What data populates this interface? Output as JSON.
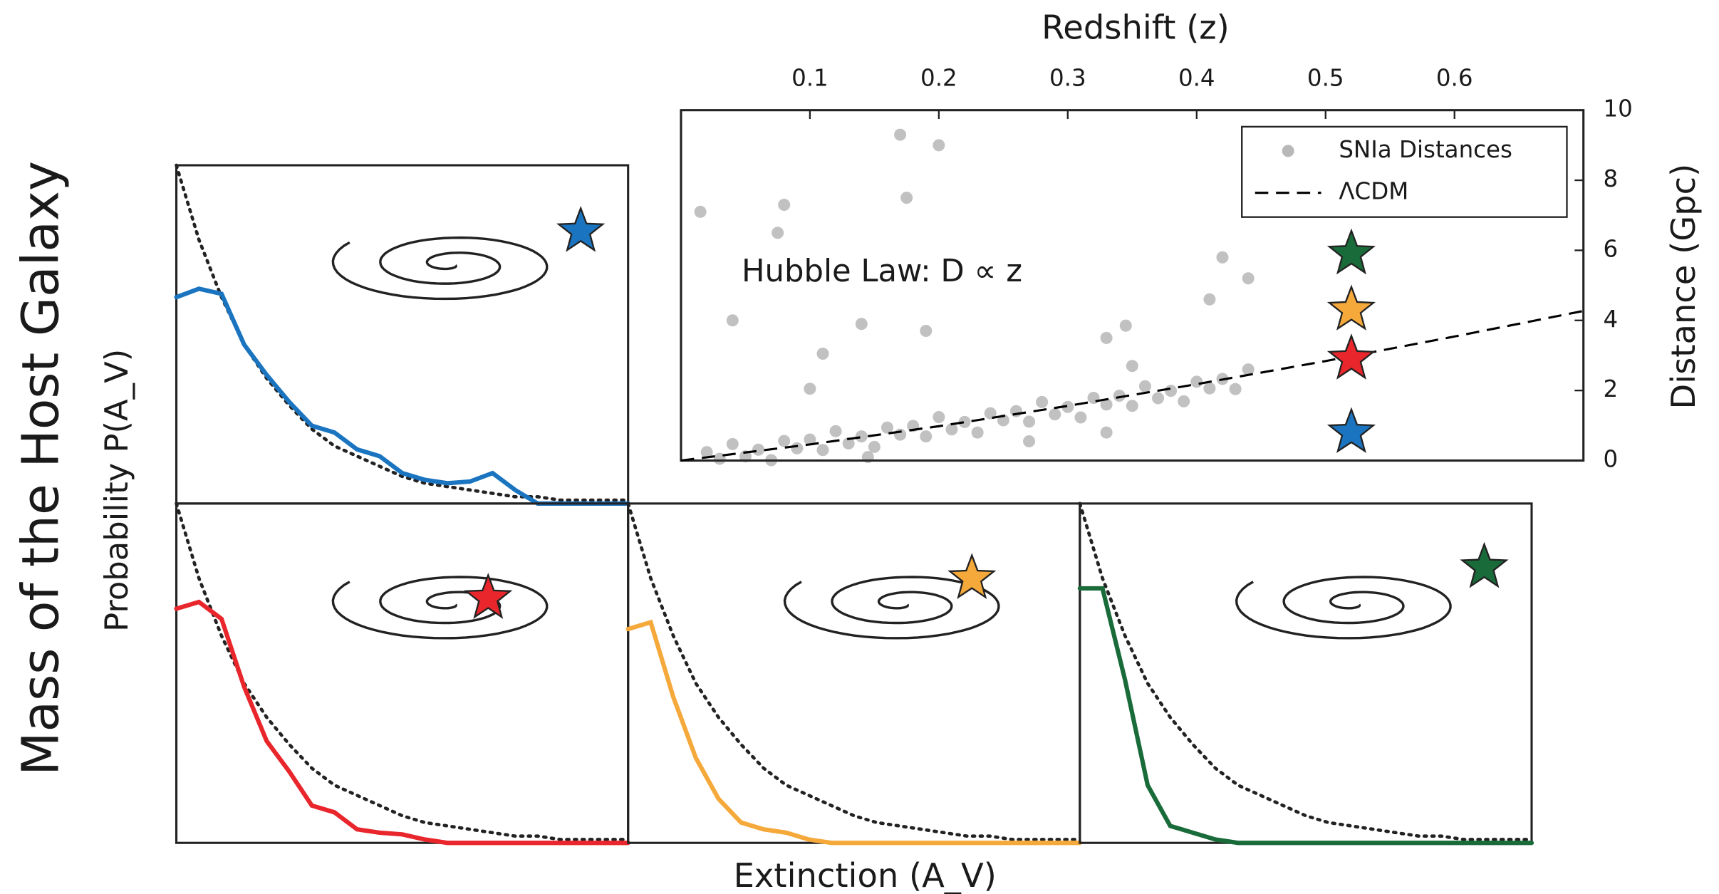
{
  "labels": {
    "figure_ylabel": "Mass of the Host Galaxy",
    "ylabel": "Probability P(A_V)",
    "xlabel": "Extinction (A_V)"
  },
  "chart_data": [
    {
      "type": "scatter",
      "xlabel": "Redshift (z)",
      "ylabel": "Distance (Gpc)",
      "annotation": "Hubble Law: D ∝ z",
      "xlim": [
        0,
        0.7
      ],
      "xticks": [
        0.1,
        0.2,
        0.3,
        0.4,
        0.5,
        0.6
      ],
      "ylim": [
        0,
        10
      ],
      "yticks": [
        0,
        2,
        4,
        6,
        8,
        10
      ],
      "legend": "upper right",
      "series": [
        {
          "name": "SNIa Distances",
          "type": "scatter",
          "color": "#333333",
          "x": [
            0.02,
            0.03,
            0.04,
            0.05,
            0.06,
            0.07,
            0.08,
            0.09,
            0.1,
            0.11,
            0.12,
            0.13,
            0.14,
            0.15,
            0.16,
            0.17,
            0.18,
            0.19,
            0.2,
            0.21,
            0.22,
            0.23,
            0.24,
            0.25,
            0.26,
            0.27,
            0.28,
            0.29,
            0.3,
            0.31,
            0.32,
            0.33,
            0.34,
            0.35,
            0.36,
            0.37,
            0.38,
            0.39,
            0.4,
            0.41,
            0.42,
            0.43,
            0.44,
            0.015,
            0.08,
            0.075,
            0.04,
            0.11,
            0.14,
            0.19,
            0.2,
            0.17,
            0.175,
            0.42,
            0.44,
            0.41,
            0.1,
            0.145,
            0.27,
            0.33,
            0.33,
            0.345,
            0.35
          ],
          "values": [
            0.24,
            0.05,
            0.47,
            0.12,
            0.31,
            0.01,
            0.56,
            0.35,
            0.6,
            0.3,
            0.84,
            0.49,
            0.69,
            0.39,
            0.94,
            0.74,
            0.99,
            0.69,
            1.24,
            0.89,
            1.1,
            0.8,
            1.35,
            1.15,
            1.41,
            1.11,
            1.67,
            1.32,
            1.53,
            1.23,
            1.79,
            1.6,
            1.85,
            1.56,
            2.12,
            1.78,
            1.99,
            1.69,
            2.25,
            2.06,
            2.33,
            2.04,
            2.6,
            7.1,
            7.3,
            6.5,
            4.0,
            3.05,
            3.9,
            3.7,
            9.0,
            9.3,
            7.5,
            5.8,
            5.2,
            4.6,
            2.05,
            0.1,
            0.55,
            0.8,
            3.5,
            3.85,
            2.7
          ]
        },
        {
          "name": "ΛCDM",
          "type": "line",
          "style": "dashed",
          "color": "#000000",
          "x": [
            0,
            0.1,
            0.2,
            0.3,
            0.4,
            0.5,
            0.6,
            0.7
          ],
          "values": [
            0,
            0.46,
            0.98,
            1.56,
            2.18,
            2.84,
            3.54,
            4.27
          ]
        }
      ],
      "stars": {
        "x": [
          0.52,
          0.52,
          0.52,
          0.52
        ],
        "values": [
          0.8,
          2.9,
          4.3,
          5.9
        ],
        "colors": [
          "#1a74bf",
          "#e8262b",
          "#f5a93b",
          "#1a6b3a"
        ]
      }
    },
    {
      "type": "line",
      "xlim": [
        0,
        1
      ],
      "ylim": [
        0,
        1
      ],
      "x": [
        0,
        0.05,
        0.1,
        0.15,
        0.2,
        0.25,
        0.3,
        0.35,
        0.4,
        0.45,
        0.5,
        0.55,
        0.6,
        0.65,
        0.7,
        0.75,
        0.8,
        0.85,
        0.9,
        0.95,
        1
      ],
      "series": [
        {
          "color": "#1a74bf",
          "values": [
            0.61,
            0.635,
            0.62,
            0.47,
            0.38,
            0.3,
            0.23,
            0.21,
            0.16,
            0.14,
            0.09,
            0.07,
            0.06,
            0.065,
            0.09,
            0.04,
            0,
            0,
            0,
            0,
            0
          ]
        },
        {
          "color": "#222222",
          "style": "dotted",
          "values": [
            1,
            0.78,
            0.61,
            0.47,
            0.37,
            0.29,
            0.22,
            0.17,
            0.14,
            0.11,
            0.08,
            0.06,
            0.05,
            0.04,
            0.03,
            0.02,
            0.02,
            0.01,
            0.01,
            0.01,
            0.01
          ]
        }
      ]
    },
    {
      "type": "line",
      "xlim": [
        0,
        1
      ],
      "ylim": [
        0,
        1
      ],
      "x": [
        0,
        0.05,
        0.1,
        0.15,
        0.2,
        0.25,
        0.3,
        0.35,
        0.4,
        0.45,
        0.5,
        0.55,
        0.6,
        0.65,
        0.7,
        0.75,
        0.8,
        0.85,
        0.9,
        0.95,
        1
      ],
      "series": [
        {
          "color": "#e8262b",
          "values": [
            0.69,
            0.71,
            0.66,
            0.46,
            0.3,
            0.21,
            0.11,
            0.09,
            0.04,
            0.03,
            0.025,
            0.01,
            0,
            0,
            0,
            0,
            0,
            0,
            0,
            0,
            0
          ]
        },
        {
          "color": "#222222",
          "style": "dotted",
          "values": [
            1,
            0.78,
            0.61,
            0.47,
            0.37,
            0.29,
            0.22,
            0.17,
            0.14,
            0.11,
            0.08,
            0.06,
            0.05,
            0.04,
            0.03,
            0.02,
            0.02,
            0.01,
            0.01,
            0.01,
            0.01
          ]
        }
      ]
    },
    {
      "type": "line",
      "xlim": [
        0,
        1
      ],
      "ylim": [
        0,
        1
      ],
      "x": [
        0,
        0.05,
        0.1,
        0.15,
        0.2,
        0.25,
        0.3,
        0.35,
        0.4,
        0.45,
        0.5,
        0.55,
        0.6,
        0.65,
        0.7,
        0.75,
        0.8,
        0.85,
        0.9,
        0.95,
        1
      ],
      "series": [
        {
          "color": "#f5a93b",
          "values": [
            0.63,
            0.65,
            0.43,
            0.25,
            0.13,
            0.06,
            0.04,
            0.03,
            0.01,
            0,
            0,
            0,
            0,
            0,
            0,
            0,
            0,
            0,
            0,
            0,
            0
          ]
        },
        {
          "color": "#222222",
          "style": "dotted",
          "values": [
            1,
            0.78,
            0.61,
            0.47,
            0.37,
            0.29,
            0.22,
            0.17,
            0.14,
            0.11,
            0.08,
            0.06,
            0.05,
            0.04,
            0.03,
            0.02,
            0.02,
            0.01,
            0.01,
            0.01,
            0.01
          ]
        }
      ]
    },
    {
      "type": "line",
      "xlim": [
        0,
        1
      ],
      "ylim": [
        0,
        1
      ],
      "x": [
        0,
        0.05,
        0.1,
        0.15,
        0.2,
        0.25,
        0.3,
        0.35,
        0.4,
        0.45,
        0.5,
        0.55,
        0.6,
        0.65,
        0.7,
        0.75,
        0.8,
        0.85,
        0.9,
        0.95,
        1
      ],
      "series": [
        {
          "color": "#1a6b3a",
          "values": [
            0.75,
            0.75,
            0.48,
            0.17,
            0.05,
            0.03,
            0.01,
            0,
            0,
            0,
            0,
            0,
            0,
            0,
            0,
            0,
            0,
            0,
            0,
            0,
            0
          ]
        },
        {
          "color": "#222222",
          "style": "dotted",
          "values": [
            1,
            0.78,
            0.61,
            0.47,
            0.37,
            0.29,
            0.22,
            0.17,
            0.14,
            0.11,
            0.08,
            0.06,
            0.05,
            0.04,
            0.03,
            0.02,
            0.02,
            0.01,
            0.01,
            0.01,
            0.01
          ]
        }
      ]
    }
  ]
}
